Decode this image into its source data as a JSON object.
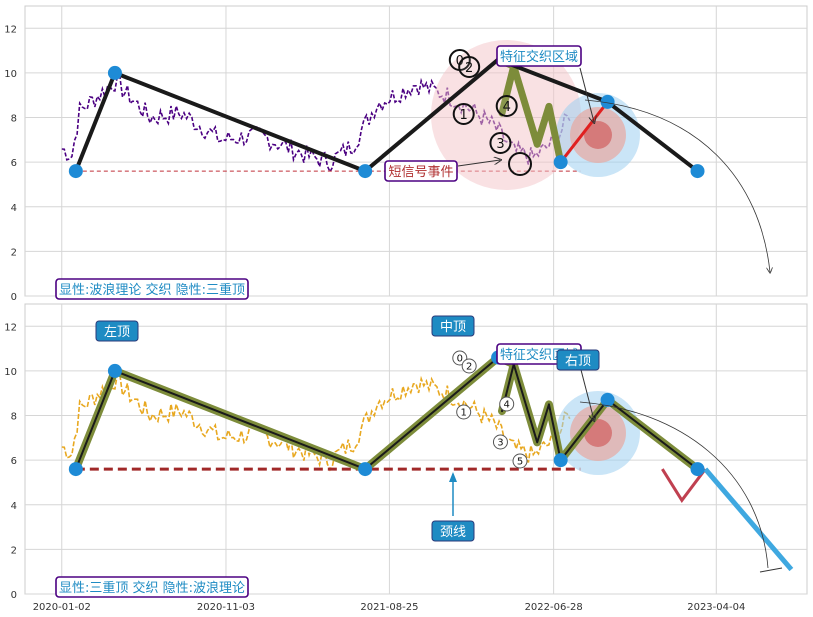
{
  "chart_data": [
    {
      "type": "line",
      "panel": "top",
      "ylim": [
        0,
        13
      ],
      "yticks": [
        0,
        2,
        4,
        6,
        8,
        10,
        12
      ],
      "grid": true,
      "neckline": 5.6,
      "wave_path": [
        {
          "x": 0.02,
          "y": 5.6
        },
        {
          "x": 0.07,
          "y": 10.0
        },
        {
          "x": 0.39,
          "y": 5.6
        },
        {
          "x": 0.56,
          "y": 10.6
        },
        {
          "x": 0.58,
          "y": 10.3
        },
        {
          "x": 0.565,
          "y": 8.2
        },
        {
          "x": 0.61,
          "y": 6.8
        },
        {
          "x": 0.625,
          "y": 8.5
        },
        {
          "x": 0.64,
          "y": 6.0
        },
        {
          "x": 0.7,
          "y": 8.7
        },
        {
          "x": 0.815,
          "y": 5.6
        }
      ],
      "wave_labels": [
        "0",
        "2",
        "1",
        "3",
        "4"
      ],
      "annotations": [
        {
          "text": "特征交织区域",
          "target": "zone"
        },
        {
          "text": "短信号事件",
          "target": "low"
        }
      ],
      "caption": "显性:波浪理论 交织 隐性:三重顶"
    },
    {
      "type": "line",
      "panel": "bottom",
      "ylim": [
        0,
        13
      ],
      "yticks": [
        0,
        2,
        4,
        6,
        8,
        10,
        12
      ],
      "xticks": [
        "2020-01-02",
        "2020-11-03",
        "2021-08-25",
        "2022-06-28",
        "2023-04-04"
      ],
      "grid": true,
      "neckline": 5.6,
      "pattern_points": [
        {
          "name": "左顶",
          "y": 10.0
        },
        {
          "name": "中顶",
          "y": 10.3
        },
        {
          "name": "右顶",
          "y": 8.7
        }
      ],
      "neck_label": "颈线",
      "wave_labels": [
        "0",
        "2",
        "1",
        "3",
        "4",
        "5"
      ],
      "forecast": [
        {
          "x": 0.815,
          "y": 5.6
        },
        {
          "x": 0.84,
          "y": 4.2
        },
        {
          "x": 0.87,
          "y": 5.6
        },
        {
          "x": 0.98,
          "y": 1.1
        }
      ],
      "annotations": [
        {
          "text": "特征交织区域",
          "target": "zone"
        }
      ],
      "caption": "显性:三重顶 交织 隐性:波浪理论"
    }
  ]
}
